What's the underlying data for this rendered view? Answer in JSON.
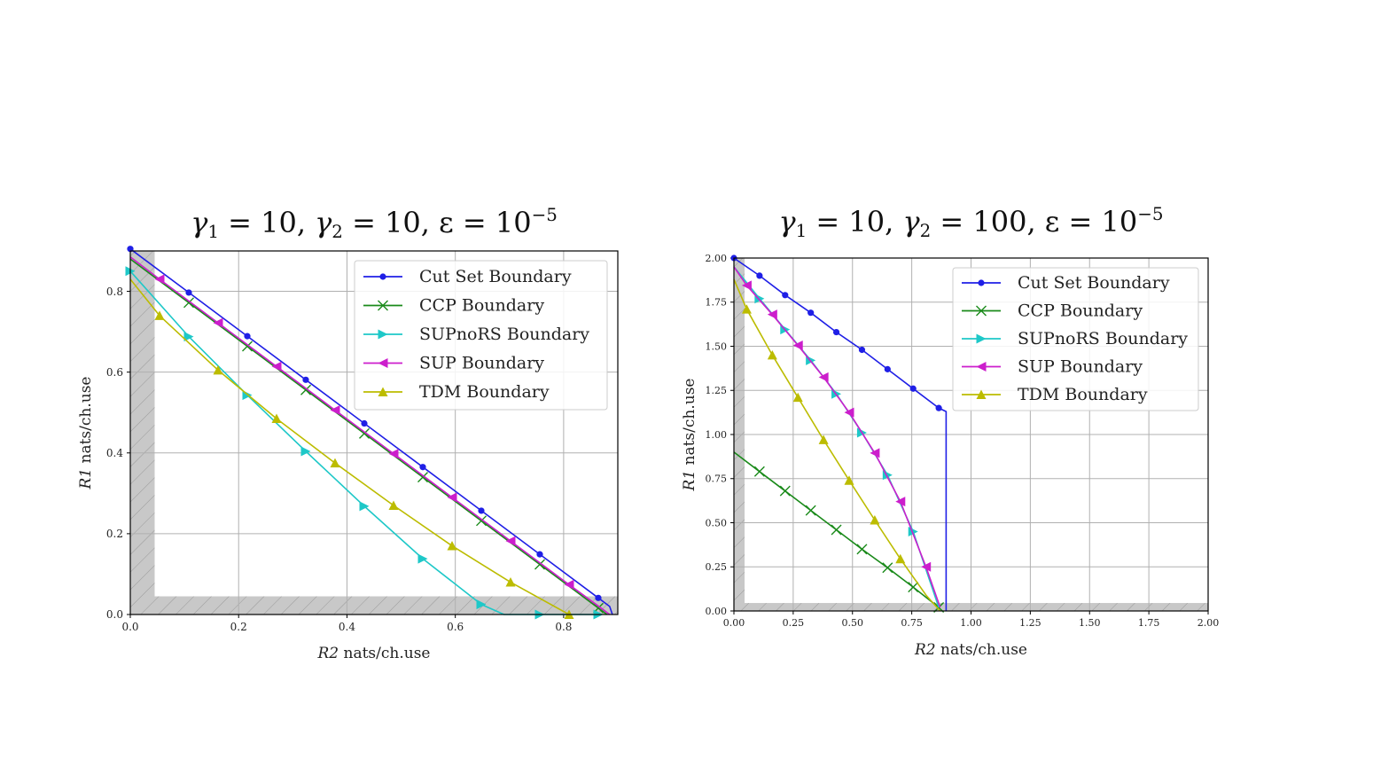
{
  "chart_data": [
    {
      "type": "line",
      "title": "γ1 = 10, γ2 = 10, ε = 10−5",
      "title_parts": {
        "g1": "γ",
        "s1": "1",
        "v1": " = 10, ",
        "g2": "γ",
        "s2": "2",
        "v2": " = 10, ε = 10",
        "exp": "−5"
      },
      "xlabel": "R2 nats/ch.use",
      "xlabel_parts": {
        "var": "R2",
        "unit": " nats/ch.use"
      },
      "ylabel": "R1 nats/ch.use",
      "ylabel_parts": {
        "var": "R1",
        "unit": " nats/ch.use"
      },
      "xlim": [
        0,
        0.9
      ],
      "ylim": [
        0,
        0.9
      ],
      "xticks": [
        0.0,
        0.2,
        0.4,
        0.6,
        0.8
      ],
      "xtick_labels": [
        "0.0",
        "0.2",
        "0.4",
        "0.6",
        "0.8"
      ],
      "yticks": [
        0.0,
        0.2,
        0.4,
        0.6,
        0.8
      ],
      "ytick_labels": [
        "0.0",
        "0.2",
        "0.4",
        "0.6",
        "0.8"
      ],
      "grid": true,
      "legend_position": "top-right",
      "shaded_regions": [
        {
          "axis": "x",
          "range": [
            0,
            0.045
          ],
          "color": "#c8c8c8"
        },
        {
          "axis": "y",
          "range": [
            0,
            0.045
          ],
          "color": "#c8c8c8"
        }
      ],
      "series": [
        {
          "name": "Cut Set Boundary",
          "color": "#1f1fe6",
          "marker": "circle",
          "x": [
            0.0,
            0.108,
            0.216,
            0.324,
            0.432,
            0.54,
            0.648,
            0.756,
            0.864,
            0.885,
            0.89
          ],
          "y": [
            0.905,
            0.797,
            0.689,
            0.581,
            0.473,
            0.365,
            0.257,
            0.149,
            0.041,
            0.02,
            0.0
          ],
          "marker_idx": [
            0,
            1,
            2,
            3,
            4,
            5,
            6,
            7,
            8
          ]
        },
        {
          "name": "CCP Boundary",
          "color": "#1a8a1a",
          "marker": "x",
          "x": [
            0.0,
            0.108,
            0.216,
            0.324,
            0.432,
            0.54,
            0.648,
            0.756,
            0.864,
            0.88
          ],
          "y": [
            0.88,
            0.772,
            0.664,
            0.556,
            0.448,
            0.34,
            0.232,
            0.124,
            0.016,
            0.0
          ],
          "marker_idx": [
            1,
            2,
            3,
            4,
            5,
            6,
            7,
            8
          ]
        },
        {
          "name": "SUPnoRS Boundary",
          "color": "#1ec8c8",
          "marker": "triangle-right",
          "x": [
            0.0,
            0.108,
            0.216,
            0.324,
            0.432,
            0.54,
            0.648,
            0.69,
            0.756,
            0.864
          ],
          "y": [
            0.85,
            0.688,
            0.543,
            0.404,
            0.268,
            0.138,
            0.025,
            0.0,
            0.0,
            0.0
          ],
          "marker_idx": [
            0,
            1,
            2,
            3,
            4,
            5,
            6,
            8,
            9
          ]
        },
        {
          "name": "SUP Boundary",
          "color": "#cc1ecc",
          "marker": "triangle-left",
          "x": [
            0.0,
            0.054,
            0.162,
            0.27,
            0.378,
            0.486,
            0.594,
            0.702,
            0.81,
            0.87,
            0.885
          ],
          "y": [
            0.885,
            0.83,
            0.722,
            0.614,
            0.506,
            0.398,
            0.29,
            0.182,
            0.074,
            0.015,
            0.0
          ],
          "marker_idx": [
            1,
            2,
            3,
            4,
            5,
            6,
            7,
            8
          ]
        },
        {
          "name": "TDM Boundary",
          "color": "#bcbc00",
          "marker": "triangle-up",
          "x": [
            0.0,
            0.054,
            0.162,
            0.27,
            0.378,
            0.486,
            0.594,
            0.702,
            0.81
          ],
          "y": [
            0.83,
            0.74,
            0.605,
            0.485,
            0.375,
            0.27,
            0.17,
            0.08,
            0.0
          ],
          "marker_idx": [
            1,
            2,
            3,
            4,
            5,
            6,
            7,
            8
          ]
        }
      ]
    },
    {
      "type": "line",
      "title": "γ1 = 10, γ2 = 100, ε = 10−5",
      "title_parts": {
        "g1": "γ",
        "s1": "1",
        "v1": " = 10, ",
        "g2": "γ",
        "s2": "2",
        "v2": " = 100, ε = 10",
        "exp": "−5"
      },
      "xlabel": "R2 nats/ch.use",
      "xlabel_parts": {
        "var": "R2",
        "unit": " nats/ch.use"
      },
      "ylabel": "R1 nats/ch.use",
      "ylabel_parts": {
        "var": "R1",
        "unit": " nats/ch.use"
      },
      "xlim": [
        0,
        2.0
      ],
      "ylim": [
        0,
        2.0
      ],
      "xticks": [
        0.0,
        0.25,
        0.5,
        0.75,
        1.0,
        1.25,
        1.5,
        1.75,
        2.0
      ],
      "xtick_labels": [
        "0.00",
        "0.25",
        "0.50",
        "0.75",
        "1.00",
        "1.25",
        "1.50",
        "1.75",
        "2.00"
      ],
      "yticks": [
        0.0,
        0.25,
        0.5,
        0.75,
        1.0,
        1.25,
        1.5,
        1.75,
        2.0
      ],
      "ytick_labels": [
        "0.00",
        "0.25",
        "0.50",
        "0.75",
        "1.00",
        "1.25",
        "1.50",
        "1.75",
        "2.00"
      ],
      "grid": true,
      "legend_position": "top-right",
      "shaded_regions": [
        {
          "axis": "x",
          "range": [
            0,
            0.045
          ],
          "color": "#c8c8c8"
        },
        {
          "axis": "y",
          "range": [
            0,
            0.045
          ],
          "color": "#c8c8c8"
        }
      ],
      "series": [
        {
          "name": "Cut Set Boundary",
          "color": "#1f1fe6",
          "marker": "circle",
          "x": [
            0.0,
            0.108,
            0.216,
            0.324,
            0.432,
            0.54,
            0.648,
            0.756,
            0.864,
            0.895,
            0.895
          ],
          "y": [
            2.0,
            1.9,
            1.79,
            1.69,
            1.58,
            1.48,
            1.37,
            1.26,
            1.15,
            1.13,
            0.0
          ],
          "marker_idx": [
            0,
            1,
            2,
            3,
            4,
            5,
            6,
            7,
            8
          ]
        },
        {
          "name": "CCP Boundary",
          "color": "#1a8a1a",
          "marker": "x",
          "x": [
            0.0,
            0.108,
            0.216,
            0.324,
            0.432,
            0.54,
            0.648,
            0.756,
            0.864
          ],
          "y": [
            0.9,
            0.79,
            0.68,
            0.57,
            0.46,
            0.35,
            0.245,
            0.135,
            0.02
          ],
          "marker_idx": [
            1,
            2,
            3,
            4,
            5,
            6,
            7,
            8
          ]
        },
        {
          "name": "SUPnoRS Boundary",
          "color": "#1ec8c8",
          "marker": "triangle-right",
          "x": [
            0.0,
            0.108,
            0.216,
            0.324,
            0.432,
            0.54,
            0.648,
            0.756,
            0.864
          ],
          "y": [
            1.95,
            1.77,
            1.595,
            1.42,
            1.23,
            1.01,
            0.77,
            0.45,
            0.02
          ],
          "marker_idx": [
            1,
            2,
            3,
            4,
            5,
            6,
            7
          ]
        },
        {
          "name": "SUP Boundary",
          "color": "#cc1ecc",
          "marker": "triangle-left",
          "x": [
            0.0,
            0.054,
            0.162,
            0.27,
            0.378,
            0.486,
            0.594,
            0.702,
            0.81,
            0.87
          ],
          "y": [
            1.95,
            1.845,
            1.68,
            1.505,
            1.325,
            1.125,
            0.895,
            0.62,
            0.25,
            0.02
          ],
          "marker_idx": [
            1,
            2,
            3,
            4,
            5,
            6,
            7,
            8
          ]
        },
        {
          "name": "TDM Boundary",
          "color": "#bcbc00",
          "marker": "triangle-up",
          "x": [
            0.0,
            0.054,
            0.162,
            0.27,
            0.378,
            0.486,
            0.594,
            0.702,
            0.81,
            0.87
          ],
          "y": [
            1.88,
            1.71,
            1.45,
            1.21,
            0.97,
            0.74,
            0.515,
            0.295,
            0.09,
            0.0
          ],
          "marker_idx": [
            1,
            2,
            3,
            4,
            5,
            6,
            7
          ]
        }
      ]
    }
  ]
}
